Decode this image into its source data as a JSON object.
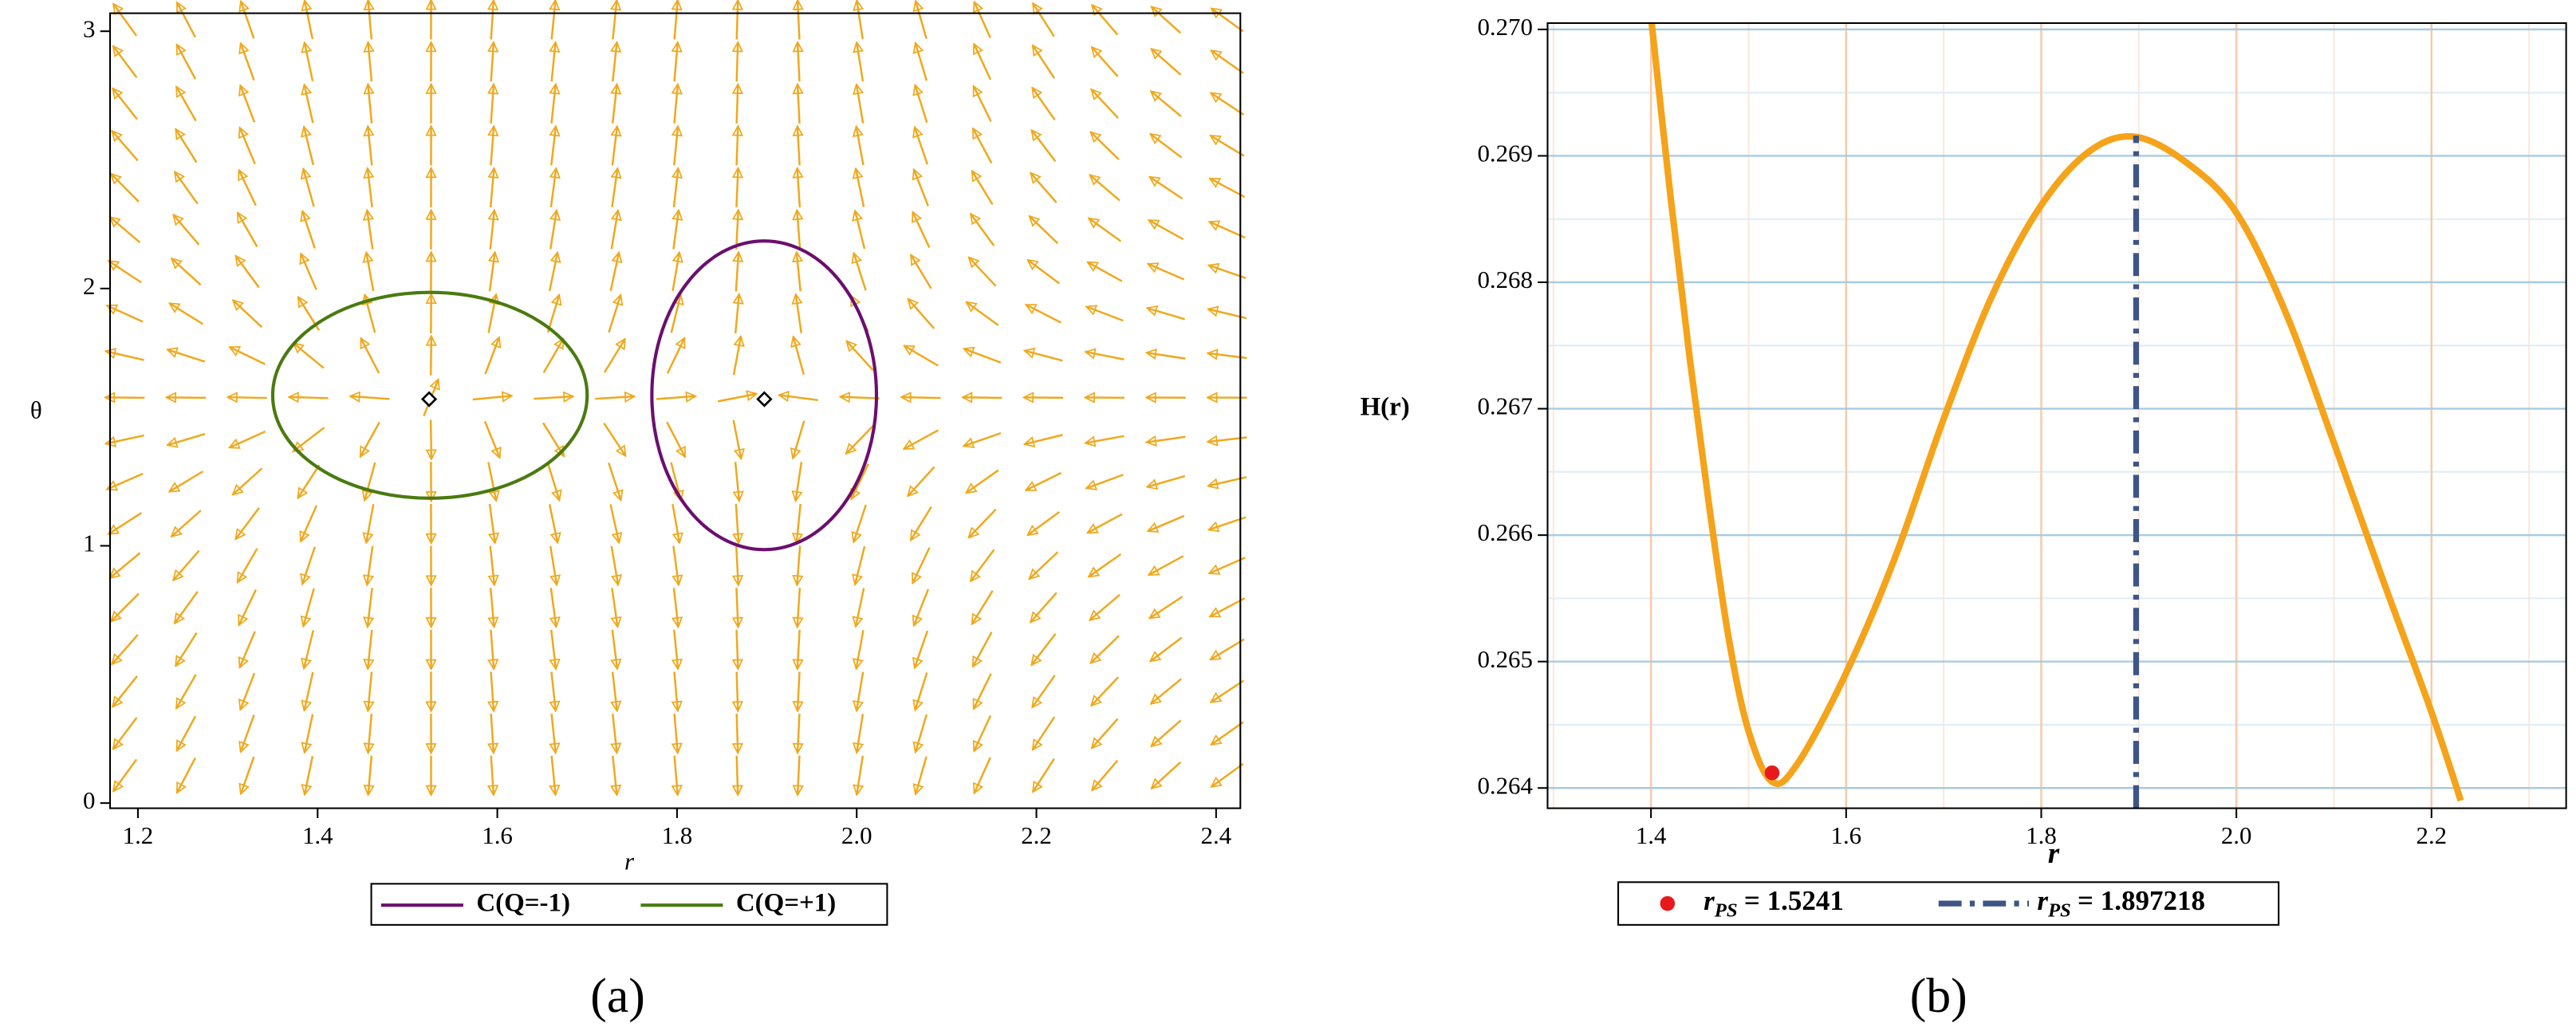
{
  "chart_data": [
    {
      "type": "vector-field",
      "caption": "(a)",
      "xlabel": "r",
      "ylabel": "θ",
      "xlim": [
        1.169,
        2.427
      ],
      "ylim": [
        -0.02,
        3.07
      ],
      "xticks": [
        1.2,
        1.4,
        1.6,
        1.8,
        {
          "value": 2,
          "label": "2.0"
        },
        2.2,
        2.4
      ],
      "yticks": [
        0,
        1,
        2,
        3
      ],
      "arrow_color": "#f0a81c",
      "zero_points": [
        {
          "x": 1.5241,
          "y": 1.57
        },
        {
          "x": 1.897218,
          "y": 1.57
        }
      ],
      "series": [
        {
          "name": "C(Q=-1)",
          "color": "#6b0f6e",
          "center": [
            1.897,
            1.585
          ],
          "radii": [
            0.125,
            0.6
          ]
        },
        {
          "name": "C(Q=+1)",
          "color": "#4a7a10",
          "center": [
            1.525,
            1.585
          ],
          "radii": [
            0.175,
            0.4
          ]
        }
      ]
    },
    {
      "type": "line",
      "caption": "(b)",
      "xlabel": "r",
      "ylabel": "H(r)",
      "xlim": [
        1.294,
        2.338
      ],
      "ylim": [
        0.26384,
        0.27005
      ],
      "xticks": [
        1.4,
        1.6,
        1.8,
        {
          "value": 2,
          "label": "2.0"
        },
        2.2
      ],
      "yticks": [
        0.264,
        0.265,
        0.266,
        0.267,
        0.268,
        0.269,
        {
          "value": 0.27,
          "label": "0.270"
        }
      ],
      "xminor": [
        1.3,
        1.5,
        1.7,
        1.9,
        2.1,
        2.3
      ],
      "yminor": [
        0.2645,
        0.2655,
        0.2665,
        0.2675,
        0.2685,
        0.2695
      ],
      "grid": true,
      "x": [
        1.4,
        1.42,
        1.44,
        1.46,
        1.48,
        1.5,
        1.524,
        1.55,
        1.6,
        1.65,
        1.7,
        1.75,
        1.8,
        1.85,
        1.897,
        1.95,
        2.0,
        2.05,
        2.1,
        2.15,
        2.2,
        2.23
      ],
      "series": [
        {
          "color": "#f5a31a",
          "values": [
            0.2701,
            0.26868,
            0.26738,
            0.26621,
            0.26517,
            0.26445,
            0.26405,
            0.26419,
            0.26491,
            0.26582,
            0.26692,
            0.2679,
            0.26861,
            0.26904,
            0.26915,
            0.26894,
            0.26855,
            0.26777,
            0.26673,
            0.26565,
            0.2646,
            0.2639
          ]
        }
      ],
      "markers": [
        {
          "symbol": "r",
          "subscript": "PS",
          "label": "= 1.5241",
          "x": 1.5241,
          "y": 0.26412,
          "color": "#e8191c",
          "style": "dot"
        },
        {
          "symbol": "r",
          "subscript": "PS",
          "label": "= 1.897218",
          "x": 1.897218,
          "y": 0.26916,
          "color": "#3e5585",
          "style": "dash-dot"
        }
      ]
    }
  ]
}
